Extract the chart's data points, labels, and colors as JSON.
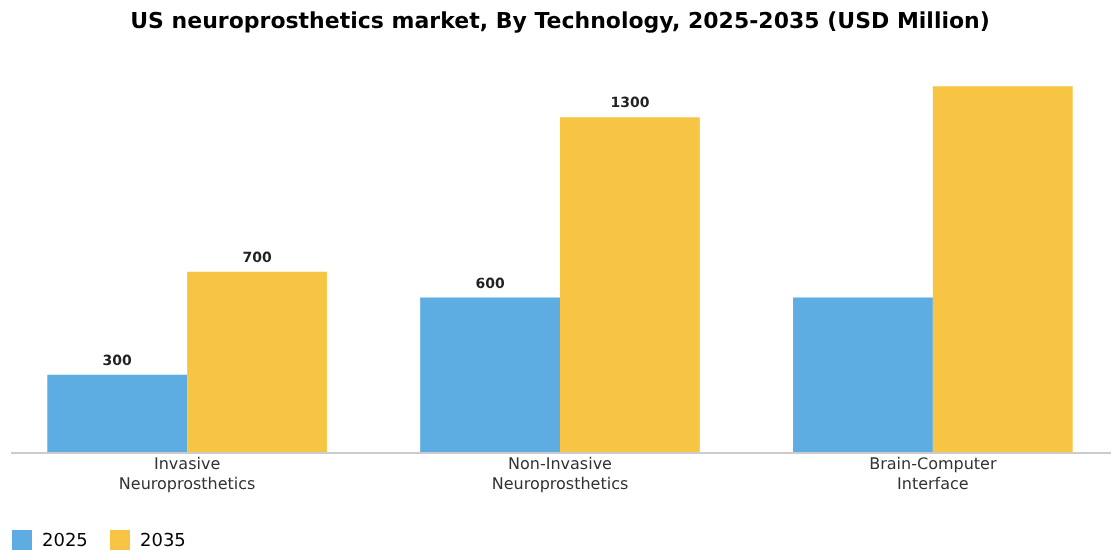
{
  "chart_data": {
    "type": "bar",
    "title": "US neuroprosthetics market, By Technology, 2025-2035 (USD Million)",
    "categories": [
      "Invasive Neuroprosthetics",
      "Non-Invasive Neuroprosthetics",
      "Brain-Computer Interface"
    ],
    "series": [
      {
        "name": "2025",
        "color": "#5dade2",
        "values": [
          300,
          600,
          600
        ],
        "value_labels": [
          "300",
          "600",
          null
        ]
      },
      {
        "name": "2035",
        "color": "#f8c444",
        "values": [
          700,
          1300,
          1420
        ],
        "value_labels": [
          "700",
          "1300",
          null
        ]
      }
    ],
    "legend": "bottom",
    "grid": false,
    "tick_labels": "x"
  }
}
